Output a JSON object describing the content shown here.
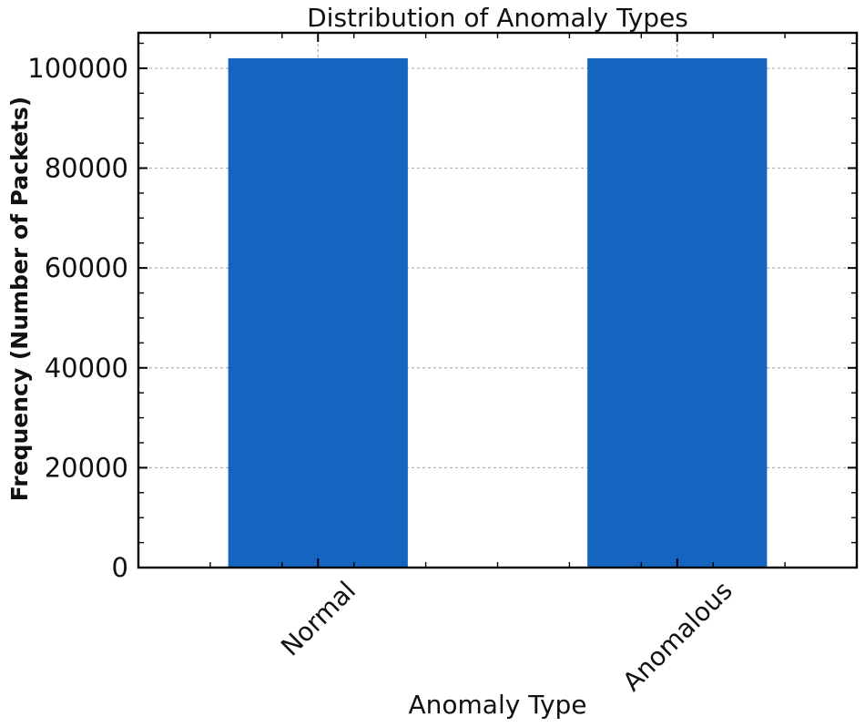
{
  "chart_data": {
    "type": "bar",
    "title": "Distribution of Anomaly Types",
    "xlabel": "Anomaly Type",
    "ylabel": "Frequency (Number of Packets)",
    "categories": [
      "Normal",
      "Anomalous"
    ],
    "values": [
      102000,
      102000
    ],
    "bar_color": "#1565c0",
    "bar_width_units": 0.5,
    "ylim": [
      0,
      107100
    ],
    "yticks": [
      0,
      20000,
      40000,
      60000,
      80000,
      100000
    ],
    "ytick_labels": [
      "0",
      "20000",
      "40000",
      "60000",
      "80000",
      "100000"
    ],
    "y_minor_step": 5000,
    "x_minor_step": 0.2,
    "xtick_rotation_deg": 45,
    "grid": "major-both-axes",
    "grid_style": "dashed",
    "grid_color": "#b0b0b0",
    "axis_color": "#000000",
    "text_color": "#111111",
    "background_color": "#ffffff",
    "legend": "none"
  }
}
